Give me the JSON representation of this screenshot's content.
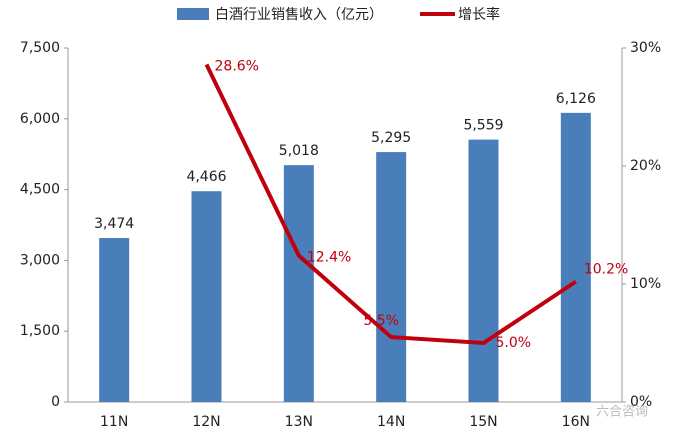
{
  "chart_data": {
    "type": "bar",
    "categories": [
      "11N",
      "12N",
      "13N",
      "14N",
      "15N",
      "16N"
    ],
    "series": [
      {
        "name": "白酒行业销售收入（亿元）",
        "color": "#4a7ebb",
        "values": [
          3474,
          4466,
          5018,
          5295,
          5559,
          6126
        ],
        "value_labels": [
          "3,474",
          "4,466",
          "5,018",
          "5,295",
          "5,559",
          "6,126"
        ]
      },
      {
        "name": "增长率",
        "type": "line",
        "axis": "y2",
        "color": "#c0000c",
        "values": [
          null,
          28.6,
          12.4,
          5.5,
          5.0,
          10.2
        ],
        "value_labels": [
          null,
          "28.6%",
          "12.4%",
          "5.5%",
          "5.0%",
          "10.2%"
        ]
      }
    ],
    "ylim": [
      0,
      7500
    ],
    "yticks": [
      0,
      {
        "value": 1500,
        "label": "1,500"
      },
      {
        "value": 3000,
        "label": "3,000"
      },
      {
        "value": 4500,
        "label": "4,500"
      },
      {
        "value": 6000,
        "label": "6,000"
      },
      {
        "value": 7500,
        "label": "7,500"
      }
    ],
    "y2lim": [
      0,
      30
    ],
    "y2ticks": [
      {
        "value": 0,
        "label": "0%"
      },
      {
        "value": 10,
        "label": "10%"
      },
      {
        "value": 20,
        "label": "20%"
      },
      {
        "value": 30,
        "label": "30%"
      }
    ],
    "legend": "top",
    "watermark": "六合咨询"
  }
}
